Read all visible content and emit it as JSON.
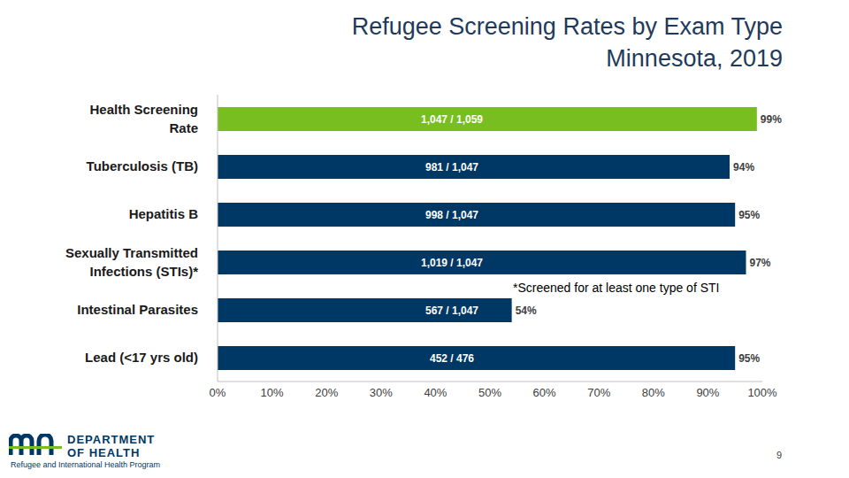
{
  "chart_data": {
    "type": "bar",
    "title": "Refugee Screening Rates by Exam Type",
    "subtitle": "Minnesota, 2019",
    "orientation": "horizontal",
    "categories": [
      "Health Screening Rate",
      "Tuberculosis (TB)",
      "Hepatitis B",
      "Sexually Transmitted Infections (STIs)*",
      "Intestinal Parasites",
      "Lead (<17 yrs old)"
    ],
    "values": [
      99,
      94,
      95,
      97,
      54,
      95
    ],
    "value_labels": [
      "99%",
      "94%",
      "95%",
      "97%",
      "54%",
      "95%"
    ],
    "inner_labels": [
      "1,047 / 1,059",
      "981 / 1,047",
      "998 / 1,047",
      "1,019 / 1,047",
      "567 / 1,047",
      "452 / 476"
    ],
    "colors": [
      "#78be20",
      "#003865",
      "#003865",
      "#003865",
      "#003865",
      "#003865"
    ],
    "xlim": [
      0,
      100
    ],
    "xticks": [
      {
        "value": 0,
        "label": "0%"
      },
      {
        "value": 10,
        "label": "10%"
      },
      {
        "value": 20,
        "label": "20%"
      },
      {
        "value": 30,
        "label": "30%"
      },
      {
        "value": 40,
        "label": "40%"
      },
      {
        "value": 50,
        "label": "50%"
      },
      {
        "value": 60,
        "label": "60%"
      },
      {
        "value": 70,
        "label": "70%"
      },
      {
        "value": 80,
        "label": "80%"
      },
      {
        "value": 90,
        "label": "90%"
      },
      {
        "value": 100,
        "label": "100%"
      }
    ],
    "grid": false,
    "data_labels": true,
    "annotation": "*Screened for at least one type of STI"
  },
  "footer": {
    "organization": [
      "DEPARTMENT",
      "OF HEALTH"
    ],
    "program": "Refugee and International Health Program",
    "page": "9"
  }
}
